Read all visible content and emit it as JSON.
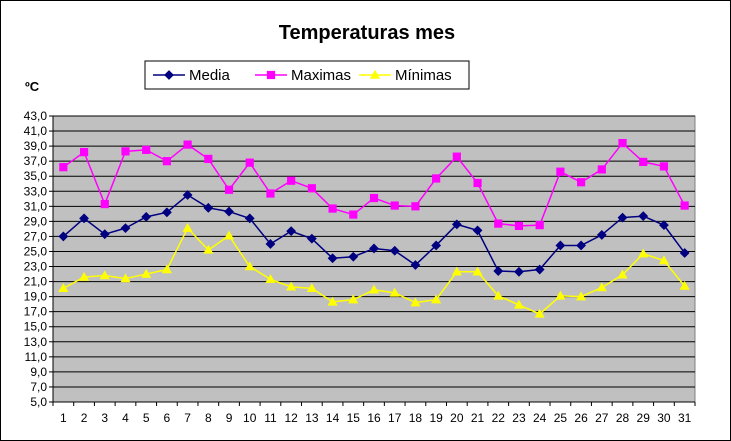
{
  "chart_data": {
    "type": "line",
    "title": "Temperaturas mes",
    "ylabel": "ºC",
    "xlabel": "",
    "ylim": [
      5.0,
      43.0
    ],
    "y_ticks": [
      "5,0",
      "7,0",
      "9,0",
      "11,0",
      "13,0",
      "15,0",
      "17,0",
      "19,0",
      "21,0",
      "23,0",
      "25,0",
      "27,0",
      "29,0",
      "31,0",
      "33,0",
      "35,0",
      "37,0",
      "39,0",
      "41,0",
      "43,0"
    ],
    "x": [
      "1",
      "2",
      "3",
      "4",
      "5",
      "6",
      "7",
      "8",
      "9",
      "10",
      "11",
      "12",
      "13",
      "14",
      "15",
      "16",
      "17",
      "18",
      "19",
      "20",
      "21",
      "22",
      "23",
      "24",
      "25",
      "26",
      "27",
      "28",
      "29",
      "30",
      "31"
    ],
    "grid": true,
    "plot_background": "#c0c0c0",
    "legend_position": "top",
    "series": [
      {
        "name": "Media",
        "color": "#000080",
        "marker": "diamond",
        "values": [
          27.0,
          29.4,
          27.3,
          28.1,
          29.6,
          30.2,
          32.5,
          30.8,
          30.3,
          29.4,
          26.0,
          27.7,
          26.7,
          24.1,
          24.3,
          25.4,
          25.1,
          23.2,
          25.8,
          28.6,
          27.8,
          22.4,
          22.3,
          22.6,
          25.8,
          25.8,
          27.2,
          29.5,
          29.7,
          28.5,
          24.8
        ]
      },
      {
        "name": "Maximas",
        "color": "#ff00ff",
        "marker": "square",
        "values": [
          36.2,
          38.2,
          31.3,
          38.3,
          38.5,
          37.0,
          39.2,
          37.3,
          33.2,
          36.8,
          32.7,
          34.4,
          33.4,
          30.7,
          29.9,
          32.1,
          31.1,
          31.0,
          34.7,
          37.6,
          34.1,
          28.7,
          28.4,
          28.5,
          35.6,
          34.2,
          35.9,
          39.4,
          36.9,
          36.3,
          31.1
        ]
      },
      {
        "name": "Mínimas",
        "color": "#ffff00",
        "marker": "triangle",
        "values": [
          20.1,
          21.6,
          21.8,
          21.4,
          22.0,
          22.6,
          28.1,
          25.2,
          27.1,
          23.0,
          21.3,
          20.3,
          20.1,
          18.3,
          18.6,
          19.9,
          19.5,
          18.2,
          18.6,
          22.3,
          22.3,
          19.1,
          17.9,
          16.7,
          19.1,
          19.0,
          20.2,
          21.9,
          24.7,
          23.8,
          20.4
        ]
      }
    ]
  }
}
